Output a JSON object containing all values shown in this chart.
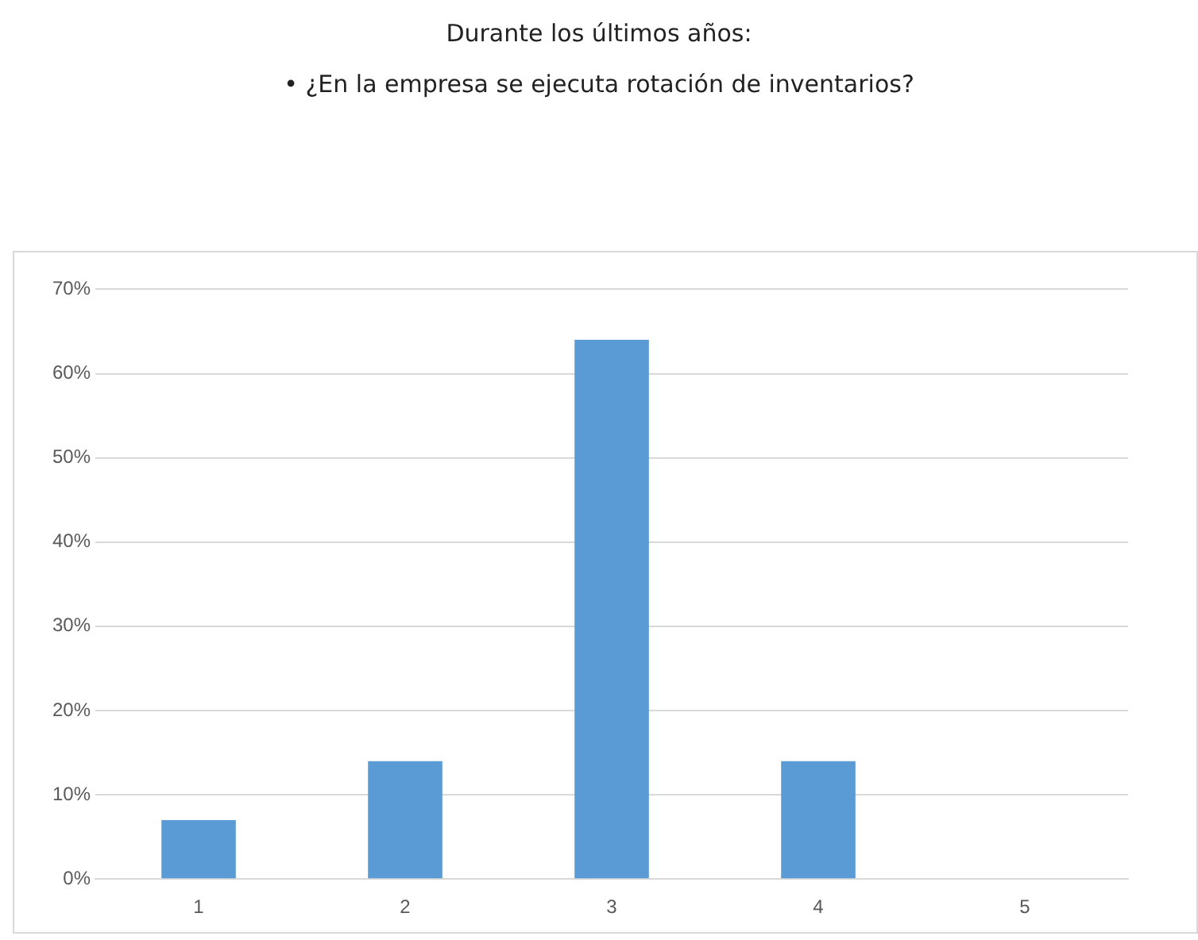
{
  "chart_data": {
    "type": "bar",
    "title": "Durante los últimos años:",
    "subtitle": "• ¿En la empresa se ejecuta rotación de inventarios?",
    "categories": [
      "1",
      "2",
      "3",
      "4",
      "5"
    ],
    "values": [
      7,
      14,
      64,
      14,
      0
    ],
    "color": "#5b9bd5",
    "ylim": [
      0,
      70
    ],
    "yticks": [
      {
        "value": 0,
        "label": "0%"
      },
      {
        "value": 10,
        "label": "10%"
      },
      {
        "value": 20,
        "label": "20%"
      },
      {
        "value": 30,
        "label": "30%"
      },
      {
        "value": 40,
        "label": "40%"
      },
      {
        "value": 50,
        "label": "50%"
      },
      {
        "value": 60,
        "label": "60%"
      },
      {
        "value": 70,
        "label": "70%"
      }
    ],
    "grid": "y"
  }
}
